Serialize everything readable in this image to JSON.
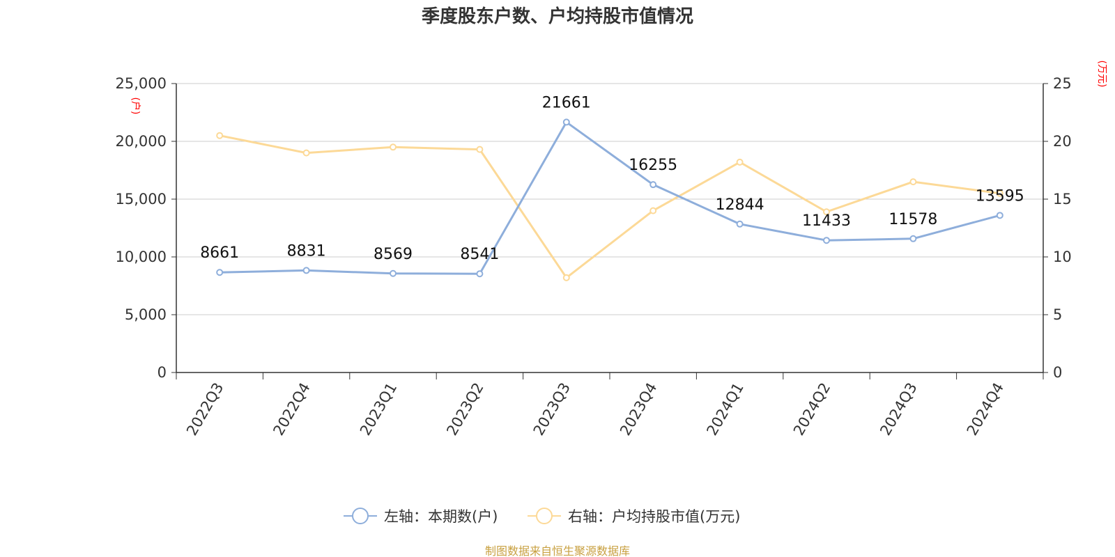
{
  "chart_data": {
    "type": "line",
    "title": "季度股东户数、户均持股市值情况",
    "categories": [
      "2022Q3",
      "2022Q4",
      "2023Q1",
      "2023Q2",
      "2023Q3",
      "2023Q4",
      "2024Q1",
      "2024Q2",
      "2024Q3",
      "2024Q4"
    ],
    "left_axis": {
      "unit": "(户)",
      "ylim": [
        0,
        25000
      ],
      "ticks": [
        "0",
        "5,000",
        "10,000",
        "15,000",
        "20,000",
        "25,000"
      ]
    },
    "right_axis": {
      "unit": "(万元)",
      "ylim": [
        0,
        25
      ],
      "ticks": [
        "0",
        "5",
        "10",
        "15",
        "20",
        "25"
      ]
    },
    "series": [
      {
        "name": "左轴：本期数(户)",
        "axis": "left",
        "color": "#8eaedb",
        "values": [
          8661,
          8831,
          8569,
          8541,
          21661,
          16255,
          12844,
          11433,
          11578,
          13595
        ],
        "labels": [
          "8661",
          "8831",
          "8569",
          "8541",
          "21661",
          "16255",
          "12844",
          "11433",
          "11578",
          "13595"
        ]
      },
      {
        "name": "右轴：户均持股市值(万元)",
        "axis": "right",
        "color": "#fcd997",
        "values": [
          20.5,
          19.0,
          19.5,
          19.3,
          8.2,
          14.0,
          18.2,
          13.9,
          16.5,
          15.5
        ]
      }
    ],
    "grid": true,
    "legend_position": "bottom"
  },
  "source": {
    "text": "制图数据来自恒生聚源数据库",
    "color": "#c8a040"
  }
}
